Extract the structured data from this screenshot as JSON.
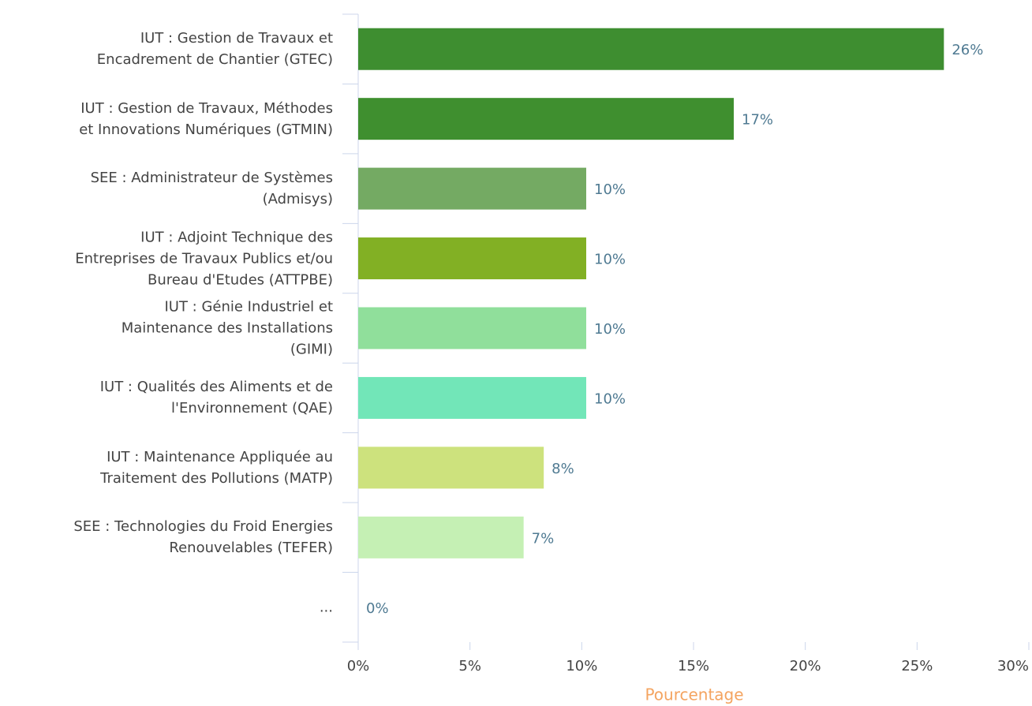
{
  "chart_data": {
    "type": "hbar",
    "categories": [
      "IUT : Gestion de Travaux et\nEncadrement de Chantier (GTEC)",
      "IUT : Gestion de Travaux, Méthodes\net Innovations Numériques (GTMIN)",
      "SEE : Administrateur de Systèmes\n(Admisys)",
      "IUT : Adjoint Technique des\nEntreprises de Travaux Publics et/ou\nBureau d'Etudes (ATTPBE)",
      "IUT : Génie Industriel et\nMaintenance des Installations\n(GIMI)",
      "IUT : Qualités des Aliments et de\nl'Environnement (QAE)",
      "IUT : Maintenance Appliquée au\nTraitement des Pollutions (MATP)",
      "SEE : Technologies du Froid Energies\nRenouvelables (TEFER)",
      "..."
    ],
    "values": [
      26.2,
      16.8,
      10.2,
      10.2,
      10.2,
      10.2,
      8.3,
      7.4,
      0
    ],
    "value_labels": [
      "26%",
      "17%",
      "10%",
      "10%",
      "10%",
      "10%",
      "8%",
      "7%",
      "0%"
    ],
    "colors": [
      "#3e8e30",
      "#3f8f2f",
      "#74aa63",
      "#82b024",
      "#90df9b",
      "#72e6b8",
      "#cde27d",
      "#c5f0b4",
      "#c5f0b4"
    ],
    "xlabel": "Pourcentage",
    "xlim": [
      0,
      30
    ],
    "xticks": [
      {
        "value": 0,
        "label": "0%"
      },
      {
        "value": 5,
        "label": "5%"
      },
      {
        "value": 10,
        "label": "10%"
      },
      {
        "value": 15,
        "label": "15%"
      },
      {
        "value": 20,
        "label": "20%"
      },
      {
        "value": 25,
        "label": "25%"
      },
      {
        "value": 30,
        "label": "30%"
      }
    ]
  }
}
